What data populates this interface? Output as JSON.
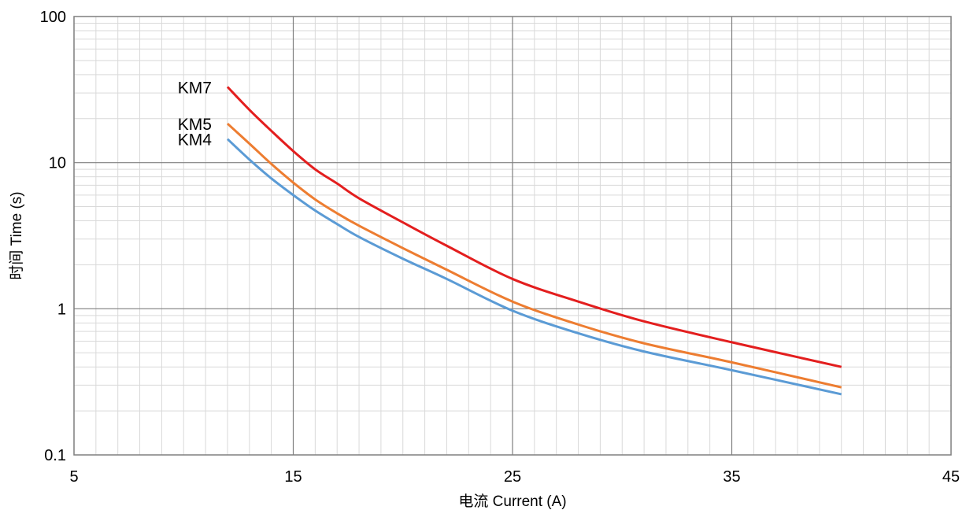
{
  "chart_data": {
    "type": "line",
    "title": "",
    "xlabel": "电流 Current (A)",
    "ylabel": "时间 Time (s)",
    "xlim": [
      5,
      45
    ],
    "ylim": [
      0.1,
      100
    ],
    "yscale": "log",
    "grid": true,
    "legend": "inline labels at start of curves",
    "x_ticks": [
      5,
      15,
      25,
      35,
      45
    ],
    "x_tick_labels": [
      "5",
      "15",
      "25",
      "35",
      "45"
    ],
    "y_ticks": [
      0.1,
      1,
      10,
      100
    ],
    "y_tick_labels": [
      "0.1",
      "1",
      "10",
      "100"
    ],
    "series": [
      {
        "name": "KM7",
        "color": "#e31e1e",
        "x": [
          12,
          13,
          14,
          15,
          16,
          17,
          18,
          20,
          22,
          25,
          28,
          31,
          35,
          40
        ],
        "y": [
          33,
          23,
          16.5,
          12,
          9,
          7.2,
          5.7,
          3.9,
          2.7,
          1.6,
          1.12,
          0.82,
          0.59,
          0.4
        ]
      },
      {
        "name": "KM5",
        "color": "#ed7d31",
        "x": [
          12,
          13,
          14,
          15,
          16,
          17,
          18,
          20,
          22,
          25,
          28,
          31,
          35,
          40
        ],
        "y": [
          18.5,
          13.5,
          9.8,
          7.3,
          5.6,
          4.5,
          3.7,
          2.6,
          1.85,
          1.12,
          0.78,
          0.58,
          0.43,
          0.29
        ]
      },
      {
        "name": "KM4",
        "color": "#5b9bd5",
        "x": [
          12,
          13,
          14,
          15,
          16,
          17,
          18,
          20,
          22,
          25,
          28,
          31,
          35,
          40
        ],
        "y": [
          14.5,
          10.5,
          7.8,
          6,
          4.7,
          3.8,
          3.1,
          2.2,
          1.6,
          0.97,
          0.68,
          0.51,
          0.38,
          0.26
        ]
      }
    ]
  }
}
